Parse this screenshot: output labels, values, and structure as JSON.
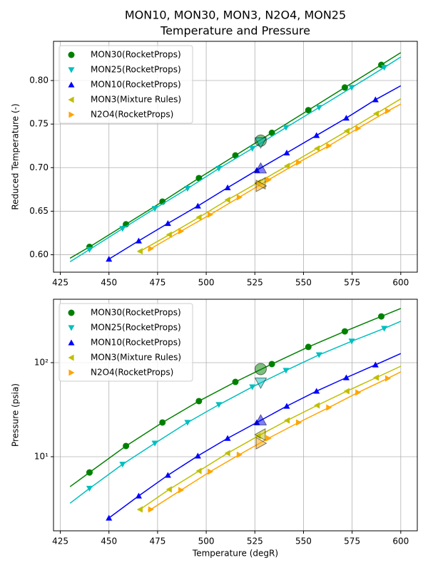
{
  "title": "MON10, MON30, MON3, N2O4, MON25",
  "subtitle": "Temperature and Pressure",
  "chart_data": [
    {
      "type": "line",
      "ylabel": "Reduced Temperature (-)",
      "xlim": [
        421.5,
        608.5
      ],
      "ylim": [
        0.58,
        0.845
      ],
      "xticks": [
        425,
        450,
        475,
        500,
        525,
        550,
        575,
        600
      ],
      "yticks": [
        {
          "value": 0.6,
          "label": "0.60"
        },
        0.65,
        {
          "value": 0.7,
          "label": "0.70"
        },
        0.75,
        {
          "value": 0.8,
          "label": "0.80"
        }
      ],
      "grid": true,
      "legend": "upper left",
      "series": [
        {
          "name": "MON30(RocketProps)",
          "color": "#008000",
          "marker": "o",
          "x": [
            440,
            458.75,
            477.5,
            496.25,
            515,
            533.75,
            552.5,
            571.25,
            590
          ],
          "values": [
            0.609,
            0.635,
            0.661,
            0.688,
            0.714,
            0.74,
            0.766,
            0.792,
            0.818
          ],
          "fit_x": [
            430,
            600
          ],
          "fit_values": [
            0.596,
            0.832
          ],
          "highlight_x": 528,
          "highlight_value": 0.731
        },
        {
          "name": "MON25(RocketProps)",
          "color": "#00bfbf",
          "marker": "v",
          "x": [
            440,
            457,
            473.6,
            490.4,
            506.5,
            523.7,
            541,
            558,
            574.8,
            591.5
          ],
          "values": [
            0.606,
            0.63,
            0.653,
            0.676,
            0.699,
            0.722,
            0.746,
            0.769,
            0.792,
            0.815
          ],
          "fit_x": [
            430,
            600
          ],
          "fit_values": [
            0.592,
            0.827
          ],
          "highlight_x": 528,
          "highlight_value": 0.729
        },
        {
          "name": "MON10(RocketProps)",
          "color": "#0000ff",
          "marker": "^",
          "x": [
            450,
            465.3,
            480.3,
            495.7,
            511,
            526,
            541.4,
            556.7,
            572,
            587
          ],
          "values": [
            0.595,
            0.616,
            0.636,
            0.656,
            0.677,
            0.697,
            0.717,
            0.737,
            0.757,
            0.778
          ],
          "fit_x": [
            450,
            600
          ],
          "fit_values": [
            0.595,
            0.794
          ],
          "highlight_x": 528,
          "highlight_value": 0.699
        },
        {
          "name": "MON3(Mixture Rules)",
          "color": "#bfbf00",
          "marker": "<",
          "x": [
            466,
            481,
            496.3,
            511,
            526.7,
            541.6,
            557,
            572.3,
            587.4
          ],
          "values": [
            0.604,
            0.623,
            0.643,
            0.663,
            0.683,
            0.702,
            0.722,
            0.742,
            0.762
          ],
          "fit_x": [
            465,
            600
          ],
          "fit_values": [
            0.603,
            0.779
          ],
          "highlight_x": 528,
          "highlight_value": 0.682
        },
        {
          "name": "N2O4(RocketProps)",
          "color": "#ffa500",
          "marker": ">",
          "x": [
            471.5,
            487,
            502,
            517,
            532,
            547.5,
            563,
            578,
            593.3
          ],
          "values": [
            0.607,
            0.627,
            0.646,
            0.666,
            0.686,
            0.706,
            0.725,
            0.745,
            0.765
          ],
          "fit_x": [
            470,
            600
          ],
          "fit_values": [
            0.605,
            0.773
          ],
          "highlight_x": 528,
          "highlight_value": 0.679
        }
      ]
    },
    {
      "type": "line",
      "xlabel": "Temperature (degR)",
      "ylabel": "Pressure (psia)",
      "log_y": true,
      "xlim": [
        421.5,
        608.5
      ],
      "ylim": [
        1.63,
        472
      ],
      "xticks": [
        425,
        450,
        475,
        500,
        525,
        550,
        575,
        600
      ],
      "yticks": [
        {
          "value": 10,
          "label": "10¹"
        },
        {
          "value": 100,
          "label": "10²"
        }
      ],
      "grid": true,
      "legend": "upper left",
      "series": [
        {
          "name": "MON30(RocketProps)",
          "color": "#008000",
          "marker": "o",
          "x": [
            440,
            458.75,
            477.5,
            496.25,
            515,
            533.75,
            552.5,
            571.25,
            590
          ],
          "values": [
            6.8,
            13,
            23.1,
            39,
            62.4,
            96.6,
            147,
            215,
            310
          ],
          "fit_x": [
            430,
            600
          ],
          "fit_values": [
            4.8,
            377
          ],
          "highlight_x": 528,
          "highlight_value": 85.5
        },
        {
          "name": "MON25(RocketProps)",
          "color": "#00bfbf",
          "marker": "v",
          "x": [
            440,
            457,
            473.6,
            490.4,
            506.5,
            523.7,
            541,
            558,
            574.8,
            591.5
          ],
          "values": [
            4.6,
            8.3,
            13.9,
            23.1,
            35.7,
            55.2,
            82.6,
            121,
            169,
            231
          ],
          "fit_x": [
            430,
            600
          ],
          "fit_values": [
            3.2,
            275
          ],
          "highlight_x": 528,
          "highlight_value": 61.4
        },
        {
          "name": "MON10(RocketProps)",
          "color": "#0000ff",
          "marker": "^",
          "x": [
            450,
            465.3,
            480.3,
            495.7,
            511,
            526,
            541.4,
            556.7,
            572,
            587
          ],
          "values": [
            2.23,
            3.83,
            6.36,
            10.2,
            15.7,
            23.1,
            34.5,
            49.8,
            69.3,
            94.8
          ],
          "fit_x": [
            450,
            600
          ],
          "fit_values": [
            2.23,
            125
          ],
          "highlight_x": 528,
          "highlight_value": 24.3
        },
        {
          "name": "MON3(Mixture Rules)",
          "color": "#bfbf00",
          "marker": "<",
          "x": [
            466,
            481,
            496.3,
            511,
            526.7,
            541.6,
            557,
            572.3,
            587.4
          ],
          "values": [
            2.75,
            4.49,
            7.05,
            10.9,
            16.6,
            24.3,
            35.1,
            49.8,
            69.3
          ],
          "fit_x": [
            465,
            600
          ],
          "fit_values": [
            2.7,
            91.6
          ],
          "highlight_x": 528,
          "highlight_value": 17.2
        },
        {
          "name": "N2O4(RocketProps)",
          "color": "#ffa500",
          "marker": ">",
          "x": [
            471.5,
            487,
            502,
            517,
            532,
            547.5,
            563,
            578,
            593.3
          ],
          "values": [
            2.75,
            4.41,
            6.93,
            10.5,
            15.7,
            23.1,
            33.3,
            48.1,
            68
          ],
          "fit_x": [
            470,
            600
          ],
          "fit_values": [
            2.7,
            79.8
          ],
          "highlight_x": 528,
          "highlight_value": 13.9
        }
      ]
    }
  ]
}
